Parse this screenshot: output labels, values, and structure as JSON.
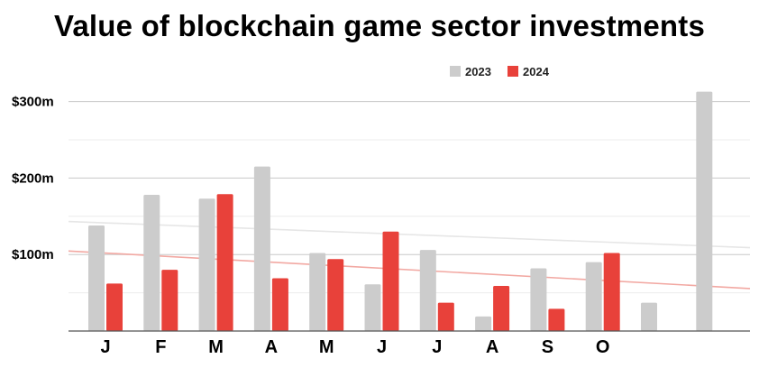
{
  "chart_data": {
    "type": "bar",
    "title": "Value of blockchain game sector investments",
    "categories": [
      "J",
      "F",
      "M",
      "A",
      "M",
      "J",
      "J",
      "A",
      "S",
      "O",
      "",
      ""
    ],
    "series": [
      {
        "name": "2023",
        "color": "#cccccc",
        "values": [
          138,
          178,
          173,
          215,
          102,
          61,
          106,
          19,
          82,
          90,
          37,
          313
        ]
      },
      {
        "name": "2024",
        "color": "#e8413a",
        "values": [
          62,
          80,
          179,
          69,
          94,
          130,
          37,
          59,
          29,
          102,
          null,
          null
        ]
      }
    ],
    "yticks": [
      "$100m",
      "$200m",
      "$300m"
    ],
    "ytick_values": [
      100,
      200,
      300
    ],
    "ylim": [
      0,
      340
    ],
    "grid": true,
    "legend": "top-center",
    "trendlines": true,
    "trendline_colors": [
      "#e6e6e6",
      "#f2a8a2"
    ]
  }
}
